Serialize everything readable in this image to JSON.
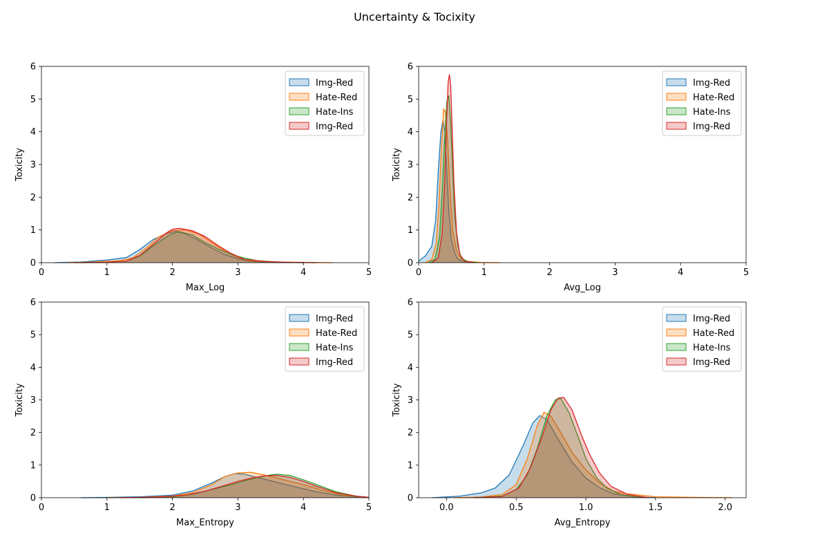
{
  "figure": {
    "title": "Uncertainty  &  Tocixity"
  },
  "chart_data": [
    {
      "type": "area",
      "xlabel": "Max_Log",
      "ylabel": "Toxicity",
      "xlim": [
        0,
        5
      ],
      "ylim": [
        0,
        6
      ],
      "xticks": [
        "0",
        "1",
        "2",
        "3",
        "4",
        "5"
      ],
      "yticks": [
        "0",
        "1",
        "2",
        "3",
        "4",
        "5",
        "6"
      ],
      "legend": "top-right",
      "series": [
        {
          "name": "Img-Red",
          "color": "#1f77b4",
          "x": [
            0.2,
            0.6,
            1.0,
            1.3,
            1.5,
            1.7,
            1.9,
            2.05,
            2.2,
            2.4,
            2.6,
            2.8,
            3.0,
            3.2,
            3.5,
            4.0
          ],
          "y": [
            0.0,
            0.02,
            0.08,
            0.16,
            0.4,
            0.7,
            0.88,
            0.96,
            0.88,
            0.68,
            0.45,
            0.25,
            0.12,
            0.04,
            0.01,
            0.0
          ]
        },
        {
          "name": "Hate-Red",
          "color": "#ff7f0e",
          "x": [
            0.4,
            0.8,
            1.2,
            1.4,
            1.6,
            1.8,
            2.0,
            2.2,
            2.4,
            2.6,
            2.8,
            3.0,
            3.2,
            3.6,
            4.0,
            4.45
          ],
          "y": [
            0.0,
            0.02,
            0.06,
            0.15,
            0.45,
            0.8,
            0.98,
            1.0,
            0.88,
            0.62,
            0.36,
            0.15,
            0.05,
            0.02,
            0.01,
            0.0
          ]
        },
        {
          "name": "Hate-Ins",
          "color": "#2ca02c",
          "x": [
            0.6,
            1.0,
            1.3,
            1.5,
            1.7,
            1.9,
            2.0,
            2.1,
            2.3,
            2.5,
            2.7,
            2.9,
            3.1,
            3.3,
            3.6,
            4.0
          ],
          "y": [
            0.0,
            0.01,
            0.05,
            0.2,
            0.5,
            0.78,
            0.88,
            0.95,
            0.85,
            0.62,
            0.42,
            0.25,
            0.14,
            0.06,
            0.02,
            0.0
          ]
        },
        {
          "name": "Img-Red",
          "color": "#d62728",
          "x": [
            0.5,
            1.0,
            1.3,
            1.5,
            1.7,
            1.9,
            2.0,
            2.1,
            2.3,
            2.5,
            2.7,
            2.9,
            3.1,
            3.4,
            3.8,
            4.2
          ],
          "y": [
            0.0,
            0.01,
            0.05,
            0.22,
            0.55,
            0.9,
            1.02,
            1.05,
            0.98,
            0.8,
            0.52,
            0.28,
            0.1,
            0.04,
            0.01,
            0.0
          ]
        }
      ]
    },
    {
      "type": "area",
      "xlabel": "Avg_Log",
      "ylabel": "Toxicity",
      "xlim": [
        0,
        5
      ],
      "ylim": [
        0,
        6
      ],
      "xticks": [
        "0",
        "1",
        "2",
        "3",
        "4",
        "5"
      ],
      "yticks": [
        "0",
        "1",
        "2",
        "3",
        "4",
        "5",
        "6"
      ],
      "legend": "top-right",
      "series": [
        {
          "name": "Img-Red",
          "color": "#1f77b4",
          "x": [
            0.0,
            0.1,
            0.2,
            0.26,
            0.3,
            0.34,
            0.37,
            0.4,
            0.43,
            0.46,
            0.5,
            0.55,
            0.6,
            0.7,
            0.8
          ],
          "y": [
            0.05,
            0.2,
            0.5,
            1.3,
            2.8,
            4.0,
            4.35,
            4.0,
            2.8,
            1.6,
            0.7,
            0.3,
            0.1,
            0.03,
            0.0
          ]
        },
        {
          "name": "Hate-Red",
          "color": "#ff7f0e",
          "x": [
            0.1,
            0.2,
            0.27,
            0.31,
            0.35,
            0.38,
            0.41,
            0.44,
            0.48,
            0.52,
            0.58,
            0.65,
            0.75,
            0.95,
            1.25
          ],
          "y": [
            0.0,
            0.1,
            0.6,
            1.8,
            3.6,
            4.7,
            4.6,
            3.8,
            2.2,
            1.0,
            0.35,
            0.12,
            0.04,
            0.01,
            0.0
          ]
        },
        {
          "name": "Hate-Ins",
          "color": "#2ca02c",
          "x": [
            0.15,
            0.25,
            0.32,
            0.36,
            0.4,
            0.43,
            0.46,
            0.49,
            0.52,
            0.55,
            0.6,
            0.65,
            0.75,
            0.9
          ],
          "y": [
            0.0,
            0.1,
            0.8,
            2.2,
            3.9,
            4.9,
            5.1,
            4.3,
            2.8,
            1.4,
            0.5,
            0.15,
            0.03,
            0.0
          ]
        },
        {
          "name": "Img-Red",
          "color": "#d62728",
          "x": [
            0.2,
            0.3,
            0.36,
            0.4,
            0.43,
            0.45,
            0.47,
            0.49,
            0.51,
            0.54,
            0.58,
            0.63,
            0.7,
            0.85
          ],
          "y": [
            0.0,
            0.15,
            0.9,
            2.6,
            4.5,
            5.5,
            5.75,
            5.4,
            4.2,
            2.4,
            0.9,
            0.25,
            0.05,
            0.0
          ]
        }
      ]
    },
    {
      "type": "area",
      "xlabel": "Max_Entropy",
      "ylabel": "Toxicity",
      "xlim": [
        0,
        5
      ],
      "ylim": [
        0,
        6
      ],
      "xticks": [
        "0",
        "1",
        "2",
        "3",
        "4",
        "5"
      ],
      "yticks": [
        "0",
        "1",
        "2",
        "3",
        "4",
        "5",
        "6"
      ],
      "legend": "top-right",
      "series": [
        {
          "name": "Img-Red",
          "color": "#1f77b4",
          "x": [
            0.6,
            1.0,
            1.5,
            2.0,
            2.3,
            2.6,
            2.8,
            2.95,
            3.1,
            3.3,
            3.6,
            3.9,
            4.2,
            4.5,
            4.8,
            5.0
          ],
          "y": [
            0.0,
            0.01,
            0.03,
            0.08,
            0.2,
            0.45,
            0.65,
            0.74,
            0.72,
            0.62,
            0.47,
            0.32,
            0.18,
            0.08,
            0.03,
            0.01
          ]
        },
        {
          "name": "Hate-Red",
          "color": "#ff7f0e",
          "x": [
            1.0,
            1.5,
            2.0,
            2.3,
            2.6,
            2.8,
            3.0,
            3.2,
            3.4,
            3.6,
            3.8,
            4.0,
            4.3,
            4.6,
            5.0
          ],
          "y": [
            0.0,
            0.01,
            0.05,
            0.15,
            0.4,
            0.65,
            0.76,
            0.78,
            0.7,
            0.6,
            0.5,
            0.4,
            0.22,
            0.08,
            0.01
          ]
        },
        {
          "name": "Hate-Ins",
          "color": "#2ca02c",
          "x": [
            1.5,
            2.0,
            2.3,
            2.6,
            2.9,
            3.1,
            3.3,
            3.5,
            3.6,
            3.8,
            4.0,
            4.2,
            4.5,
            4.8,
            5.0
          ],
          "y": [
            0.0,
            0.03,
            0.1,
            0.25,
            0.4,
            0.52,
            0.62,
            0.7,
            0.72,
            0.68,
            0.55,
            0.4,
            0.18,
            0.05,
            0.01
          ]
        },
        {
          "name": "Img-Red",
          "color": "#d62728",
          "x": [
            1.2,
            1.8,
            2.2,
            2.5,
            2.8,
            3.0,
            3.2,
            3.4,
            3.6,
            3.8,
            4.0,
            4.2,
            4.5,
            4.8,
            5.0
          ],
          "y": [
            0.0,
            0.02,
            0.08,
            0.2,
            0.38,
            0.5,
            0.6,
            0.67,
            0.68,
            0.62,
            0.5,
            0.35,
            0.15,
            0.05,
            0.01
          ]
        }
      ]
    },
    {
      "type": "area",
      "xlabel": "Avg_Entropy",
      "ylabel": "Toxicity",
      "xlim": [
        -0.2,
        2.15
      ],
      "ylim": [
        0,
        6
      ],
      "xticks": [
        "0.0",
        "0.5",
        "1.0",
        "1.5",
        "2.0"
      ],
      "xtick_values": [
        0.0,
        0.5,
        1.0,
        1.5,
        2.0
      ],
      "yticks": [
        "0",
        "1",
        "2",
        "3",
        "4",
        "5",
        "6"
      ],
      "legend": "top-right",
      "series": [
        {
          "name": "Img-Red",
          "color": "#1f77b4",
          "x": [
            -0.1,
            0.1,
            0.25,
            0.35,
            0.45,
            0.55,
            0.62,
            0.67,
            0.72,
            0.8,
            0.9,
            1.0,
            1.1,
            1.2,
            1.35,
            1.5
          ],
          "y": [
            0.0,
            0.05,
            0.15,
            0.3,
            0.7,
            1.6,
            2.3,
            2.52,
            2.4,
            1.8,
            1.1,
            0.6,
            0.3,
            0.12,
            0.03,
            0.0
          ]
        },
        {
          "name": "Hate-Red",
          "color": "#ff7f0e",
          "x": [
            0.05,
            0.25,
            0.4,
            0.5,
            0.58,
            0.65,
            0.7,
            0.75,
            0.82,
            0.9,
            1.0,
            1.1,
            1.2,
            1.3,
            1.5,
            1.8,
            2.05
          ],
          "y": [
            0.0,
            0.02,
            0.1,
            0.4,
            1.2,
            2.2,
            2.62,
            2.5,
            2.0,
            1.4,
            0.85,
            0.45,
            0.2,
            0.12,
            0.03,
            0.01,
            0.0
          ]
        },
        {
          "name": "Hate-Ins",
          "color": "#2ca02c",
          "x": [
            0.2,
            0.4,
            0.5,
            0.58,
            0.65,
            0.72,
            0.78,
            0.82,
            0.88,
            0.95,
            1.0,
            1.08,
            1.15,
            1.25,
            1.4
          ],
          "y": [
            0.0,
            0.05,
            0.25,
            0.7,
            1.5,
            2.5,
            3.0,
            3.05,
            2.6,
            1.8,
            1.2,
            0.6,
            0.3,
            0.1,
            0.0
          ]
        },
        {
          "name": "Img-Red",
          "color": "#d62728",
          "x": [
            0.2,
            0.4,
            0.52,
            0.6,
            0.68,
            0.75,
            0.8,
            0.84,
            0.9,
            0.97,
            1.03,
            1.1,
            1.18,
            1.3,
            1.45
          ],
          "y": [
            0.0,
            0.04,
            0.3,
            0.9,
            1.8,
            2.7,
            3.05,
            3.08,
            2.7,
            1.9,
            1.3,
            0.75,
            0.35,
            0.1,
            0.0
          ]
        }
      ]
    }
  ]
}
